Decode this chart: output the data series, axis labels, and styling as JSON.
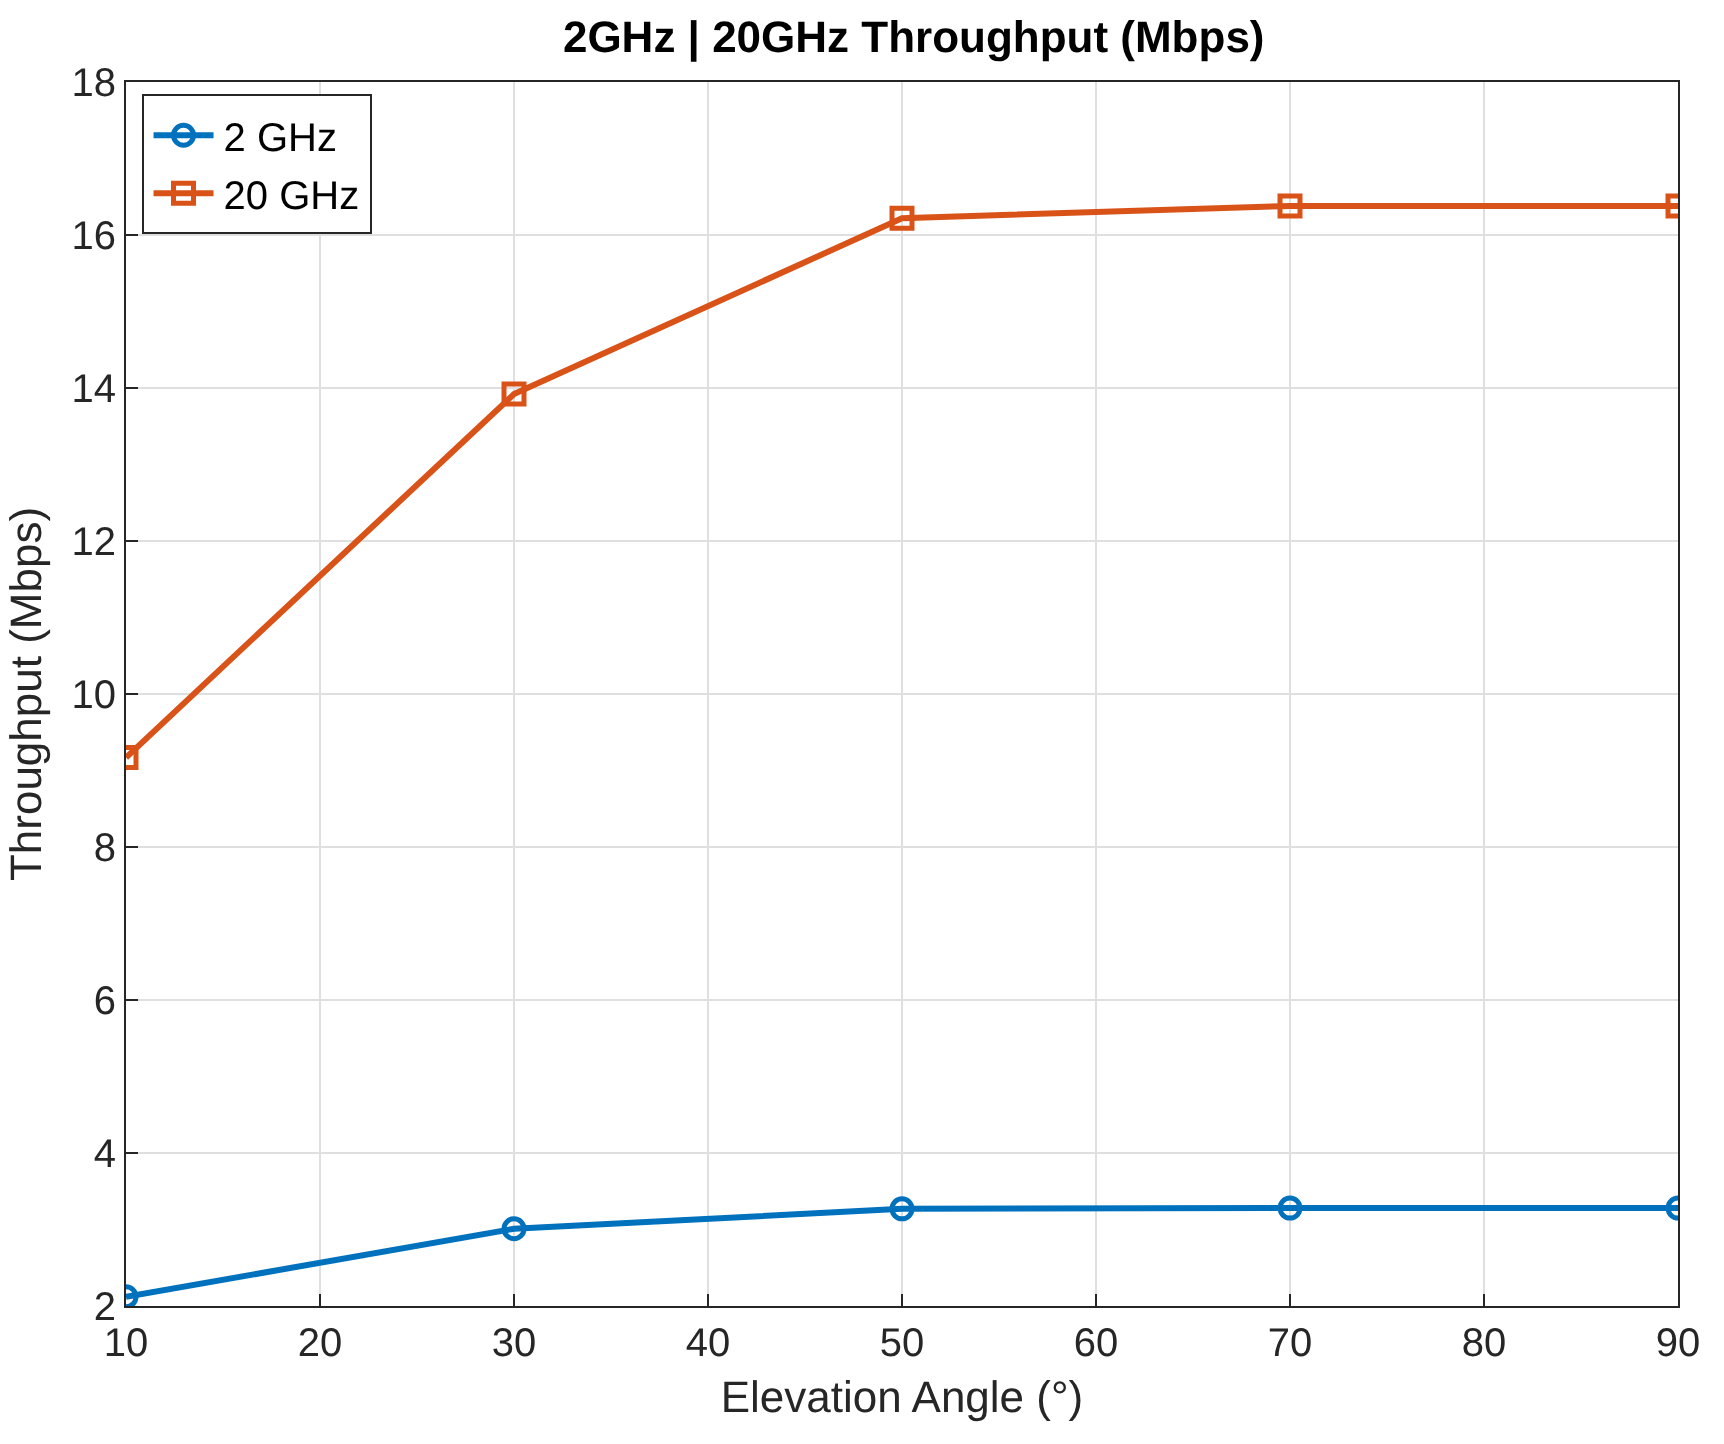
{
  "chart_data": {
    "type": "line",
    "title": "2GHz | 20GHz Throughput (Mbps)",
    "xlabel": "Elevation Angle (°)",
    "ylabel": "Throughput (Mbps)",
    "x": [
      10,
      30,
      50,
      70,
      90
    ],
    "series": [
      {
        "name": "2 GHz",
        "color": "#0072bd",
        "marker": "circle",
        "values": [
          2.12,
          3.01,
          3.27,
          3.28,
          3.28
        ]
      },
      {
        "name": "20 GHz",
        "color": "#d95319",
        "marker": "square",
        "values": [
          9.17,
          13.92,
          16.22,
          16.38,
          16.38
        ]
      }
    ],
    "xlim": [
      10,
      90
    ],
    "xticks": [
      10,
      20,
      30,
      40,
      50,
      60,
      70,
      80,
      90
    ],
    "ylim": [
      2,
      18
    ],
    "yticks": [
      2,
      4,
      6,
      8,
      10,
      12,
      14,
      16,
      18
    ],
    "grid": true,
    "legend": "top left",
    "line_style": "solid"
  }
}
